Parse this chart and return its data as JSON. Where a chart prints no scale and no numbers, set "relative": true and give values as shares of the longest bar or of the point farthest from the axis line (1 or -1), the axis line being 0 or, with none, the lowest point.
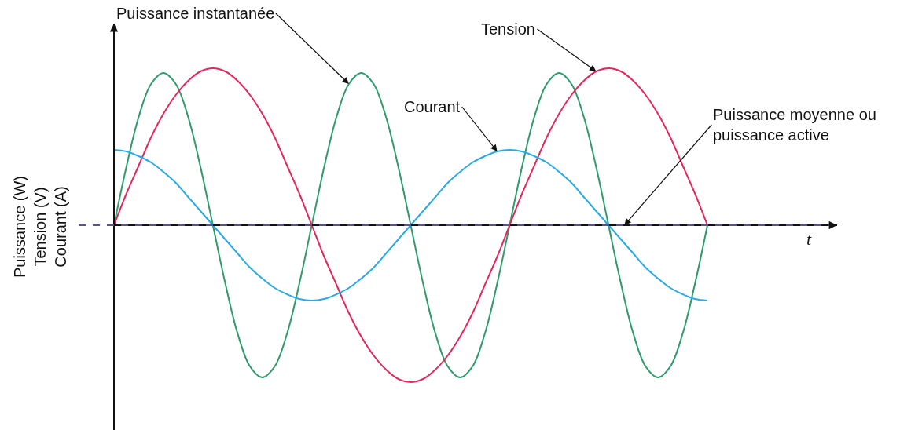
{
  "chart_data": {
    "type": "line",
    "relative": true,
    "ylabel": "Puissance (W)\nTension (V)\nCourant (A)",
    "line_style": "solid",
    "categories": [
      null,
      null,
      null,
      null,
      null,
      null,
      null,
      null,
      null,
      null,
      null,
      null,
      null,
      null,
      null,
      null,
      null,
      null,
      null,
      null,
      null,
      null,
      null,
      null,
      null,
      null,
      null,
      null,
      null,
      null,
      null,
      null,
      null,
      null,
      null,
      null,
      null,
      null,
      null,
      null,
      null,
      null,
      null,
      null,
      null,
      null,
      null,
      null,
      null
    ],
    "series": [
      {
        "color": "#2e9c6a",
        "values": [
          0,
          0.37,
          0.69,
          0.9,
          0.97,
          0.9,
          0.69,
          0.37,
          0,
          -0.37,
          -0.69,
          -0.9,
          -0.97,
          -0.9,
          -0.69,
          -0.37,
          0,
          0.37,
          0.69,
          0.9,
          0.97,
          0.9,
          0.69,
          0.37,
          0,
          -0.37,
          -0.69,
          -0.9,
          -0.97,
          -0.9,
          -0.69,
          -0.37,
          0,
          0.37,
          0.69,
          0.9,
          0.97,
          0.9,
          0.69,
          0.37,
          0,
          -0.37,
          -0.69,
          -0.9,
          -0.97,
          -0.9,
          -0.69,
          -0.37,
          0
        ]
      },
      {
        "color": "#e5285a",
        "values": [
          0,
          0.2,
          0.38,
          0.56,
          0.71,
          0.83,
          0.92,
          0.98,
          1,
          0.98,
          0.92,
          0.83,
          0.71,
          0.56,
          0.38,
          0.2,
          0,
          -0.2,
          -0.38,
          -0.56,
          -0.71,
          -0.83,
          -0.92,
          -0.98,
          -1,
          -0.98,
          -0.92,
          -0.83,
          -0.71,
          -0.56,
          -0.38,
          -0.2,
          0,
          0.2,
          0.38,
          0.56,
          0.71,
          0.83,
          0.92,
          0.98,
          1,
          0.98,
          0.92,
          0.83,
          0.71,
          0.56,
          0.38,
          0.2,
          0
        ]
      },
      {
        "color": "#29aae6",
        "values": [
          0.48,
          0.47,
          0.44,
          0.4,
          0.34,
          0.27,
          0.18,
          0.09,
          0,
          -0.09,
          -0.18,
          -0.27,
          -0.34,
          -0.4,
          -0.44,
          -0.47,
          -0.48,
          -0.47,
          -0.44,
          -0.4,
          -0.34,
          -0.27,
          -0.18,
          -0.09,
          0,
          0.09,
          0.18,
          0.27,
          0.34,
          0.4,
          0.44,
          0.47,
          0.48,
          0.47,
          0.44,
          0.4,
          0.34,
          0.27,
          0.18,
          0.09,
          0,
          -0.09,
          -0.18,
          -0.27,
          -0.34,
          -0.4,
          -0.44,
          -0.47,
          -0.48
        ]
      }
    ],
    "ref_lines": [
      {
        "axis": "y",
        "value": 0,
        "label": "Puissance moyenne ou\npuissance active",
        "color": "#5b4f96",
        "line_style": "dashed"
      }
    ],
    "annotations": [
      "Puissance instantanée",
      "Tension",
      "Courant",
      "t"
    ]
  }
}
